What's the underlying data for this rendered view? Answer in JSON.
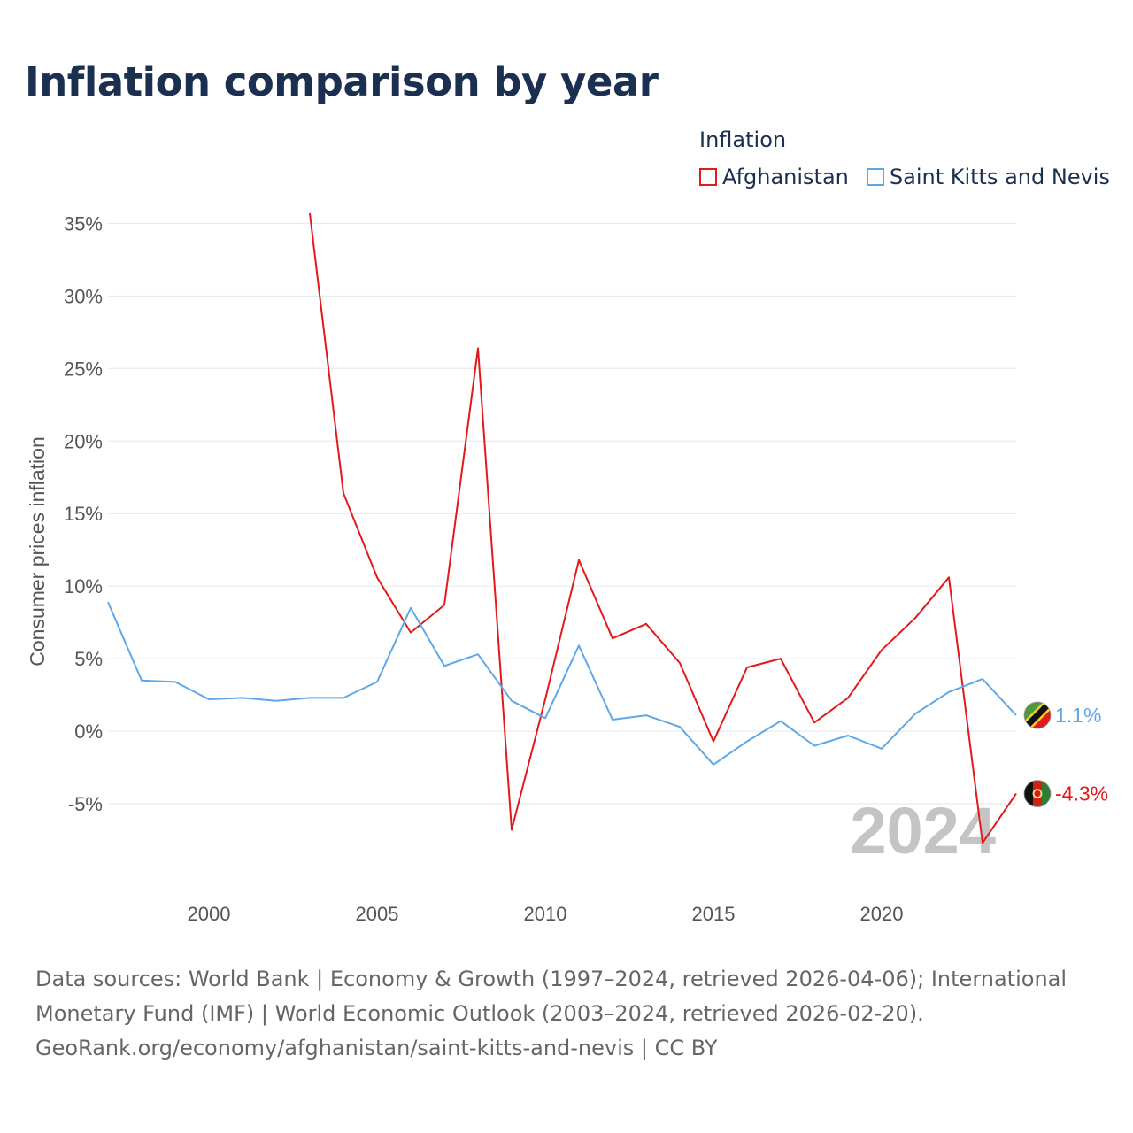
{
  "title": "Inflation comparison by year",
  "legend": {
    "title": "Inflation",
    "items": [
      {
        "label": "Afghanistan",
        "color": "#e31a1c"
      },
      {
        "label": "Saint Kitts and Nevis",
        "color": "#5fa8e8"
      }
    ]
  },
  "footer": {
    "line1": "Data sources: World Bank | Economy & Growth (1997–2024, retrieved 2026-04-06); International",
    "line2": "Monetary Fund (IMF) | World Economic Outlook (2003–2024, retrieved 2026-02-20).",
    "line3": "GeoRank.org/economy/afghanistan/saint-kitts-and-nevis | CC BY"
  },
  "chart_data": {
    "type": "line",
    "title": "Inflation comparison by year",
    "xlabel": "",
    "ylabel": "Consumer prices inflation",
    "xlim": [
      1997,
      2024
    ],
    "ylim": [
      -10,
      36
    ],
    "yticks": [
      -5,
      0,
      5,
      10,
      15,
      20,
      25,
      30,
      35
    ],
    "ytick_labels": [
      "-5%",
      "0%",
      "5%",
      "10%",
      "15%",
      "20%",
      "25%",
      "30%",
      "35%"
    ],
    "xticks": [
      2000,
      2005,
      2010,
      2015,
      2020
    ],
    "xtick_labels": [
      "2000",
      "2005",
      "2010",
      "2015",
      "2020"
    ],
    "grid": true,
    "year_watermark": "2024",
    "series": [
      {
        "name": "Afghanistan",
        "color": "#e31a1c",
        "end_label": "-4.3%",
        "flag": "afghanistan-flag",
        "x": [
          2003,
          2004,
          2005,
          2006,
          2007,
          2008,
          2009,
          2010,
          2011,
          2012,
          2013,
          2014,
          2015,
          2016,
          2017,
          2018,
          2019,
          2020,
          2021,
          2022,
          2023,
          2024
        ],
        "values": [
          35.7,
          16.4,
          10.6,
          6.8,
          8.7,
          26.4,
          -6.8,
          2.2,
          11.8,
          6.4,
          7.4,
          4.7,
          -0.7,
          4.4,
          5.0,
          0.6,
          2.3,
          5.6,
          7.8,
          10.6,
          -7.7,
          -4.3
        ]
      },
      {
        "name": "Saint Kitts and Nevis",
        "color": "#5fa8e8",
        "end_label": "1.1%",
        "flag": "saint-kitts-and-nevis-flag",
        "x": [
          1997,
          1998,
          1999,
          2000,
          2001,
          2002,
          2003,
          2004,
          2005,
          2006,
          2007,
          2008,
          2009,
          2010,
          2011,
          2012,
          2013,
          2014,
          2015,
          2016,
          2017,
          2018,
          2019,
          2020,
          2021,
          2022,
          2023,
          2024
        ],
        "values": [
          8.9,
          3.5,
          3.4,
          2.2,
          2.3,
          2.1,
          2.3,
          2.3,
          3.4,
          8.5,
          4.5,
          5.3,
          2.1,
          0.9,
          5.9,
          0.8,
          1.1,
          0.3,
          -2.3,
          -0.7,
          0.7,
          -1.0,
          -0.3,
          -1.2,
          1.2,
          2.7,
          3.6,
          1.1
        ]
      }
    ]
  }
}
